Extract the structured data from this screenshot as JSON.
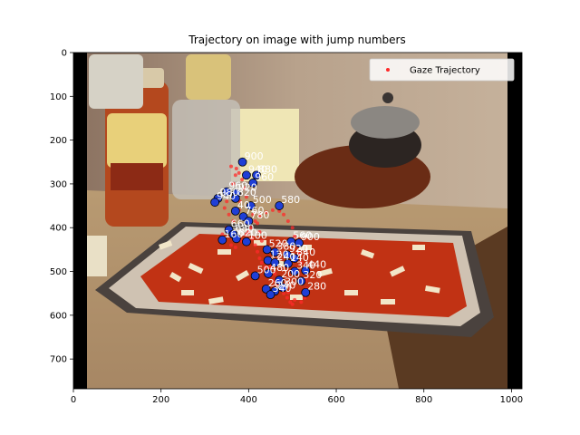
{
  "chart_data": {
    "type": "scatter",
    "title": "Trajectory on image with jump numbers",
    "xlabel": "",
    "ylabel": "",
    "xlim": [
      0,
      1024
    ],
    "ylim": [
      768,
      0
    ],
    "x_ticks": [
      0,
      200,
      400,
      600,
      800,
      1000
    ],
    "y_ticks": [
      0,
      100,
      200,
      300,
      400,
      500,
      600,
      700
    ],
    "legend": {
      "entries": [
        "Gaze Trajectory"
      ],
      "position": "top-right"
    },
    "background_image": "photo of a pizza with tomato sauce and cheese on a baking sheet, jar of pasta sauce behind, kitchen counter",
    "colors": {
      "trajectory": "#ff2a2a",
      "jump_point": "#1f3fd6",
      "jump_label": "#ffffff"
    },
    "trajectory_points": [
      [
        360,
        260
      ],
      [
        370,
        280
      ],
      [
        365,
        300
      ],
      [
        372,
        320
      ],
      [
        380,
        340
      ],
      [
        378,
        360
      ],
      [
        385,
        375
      ],
      [
        395,
        390
      ],
      [
        400,
        410
      ],
      [
        408,
        425
      ],
      [
        415,
        440
      ],
      [
        420,
        455
      ],
      [
        425,
        470
      ],
      [
        430,
        480
      ],
      [
        438,
        490
      ],
      [
        445,
        500
      ],
      [
        452,
        510
      ],
      [
        460,
        520
      ],
      [
        466,
        530
      ],
      [
        472,
        540
      ],
      [
        480,
        550
      ],
      [
        488,
        560
      ],
      [
        495,
        570
      ],
      [
        500,
        575
      ],
      [
        490,
        548
      ],
      [
        470,
        520
      ],
      [
        460,
        505
      ],
      [
        450,
        490
      ],
      [
        445,
        470
      ],
      [
        440,
        450
      ],
      [
        430,
        430
      ],
      [
        425,
        410
      ],
      [
        420,
        390
      ],
      [
        410,
        370
      ],
      [
        400,
        350
      ],
      [
        395,
        330
      ],
      [
        390,
        310
      ],
      [
        385,
        290
      ],
      [
        378,
        275
      ],
      [
        372,
        265
      ],
      [
        350,
        340
      ],
      [
        345,
        355
      ],
      [
        355,
        370
      ],
      [
        365,
        385
      ],
      [
        350,
        400
      ],
      [
        340,
        415
      ],
      [
        345,
        430
      ],
      [
        360,
        440
      ],
      [
        370,
        445
      ],
      [
        385,
        430
      ],
      [
        395,
        415
      ],
      [
        405,
        400
      ],
      [
        415,
        385
      ],
      [
        425,
        372
      ],
      [
        440,
        365
      ],
      [
        455,
        360
      ],
      [
        470,
        362
      ],
      [
        480,
        370
      ],
      [
        490,
        385
      ],
      [
        500,
        400
      ],
      [
        505,
        420
      ],
      [
        510,
        440
      ],
      [
        515,
        460
      ],
      [
        520,
        480
      ],
      [
        525,
        500
      ],
      [
        530,
        520
      ],
      [
        532,
        540
      ],
      [
        528,
        560
      ],
      [
        520,
        570
      ],
      [
        505,
        565
      ]
    ],
    "jumps": [
      {
        "label": "900",
        "x": 386,
        "y": 250
      },
      {
        "label": "940",
        "x": 395,
        "y": 280
      },
      {
        "label": "880",
        "x": 418,
        "y": 280
      },
      {
        "label": "960",
        "x": 410,
        "y": 298
      },
      {
        "label": "960",
        "x": 350,
        "y": 318
      },
      {
        "label": "920",
        "x": 372,
        "y": 322
      },
      {
        "label": "980",
        "x": 330,
        "y": 333
      },
      {
        "label": "820",
        "x": 370,
        "y": 333
      },
      {
        "label": "940",
        "x": 323,
        "y": 342
      },
      {
        "label": "500",
        "x": 405,
        "y": 350
      },
      {
        "label": "580",
        "x": 470,
        "y": 350
      },
      {
        "label": "40",
        "x": 370,
        "y": 362
      },
      {
        "label": "760",
        "x": 388,
        "y": 375
      },
      {
        "label": "780",
        "x": 400,
        "y": 385
      },
      {
        "label": "660",
        "x": 355,
        "y": 405
      },
      {
        "label": "680",
        "x": 365,
        "y": 415
      },
      {
        "label": "620",
        "x": 372,
        "y": 425
      },
      {
        "label": "100",
        "x": 395,
        "y": 432
      },
      {
        "label": "160",
        "x": 340,
        "y": 428
      },
      {
        "label": "560",
        "x": 497,
        "y": 432
      },
      {
        "label": "900",
        "x": 515,
        "y": 435
      },
      {
        "label": "520",
        "x": 442,
        "y": 450
      },
      {
        "label": "380",
        "x": 460,
        "y": 456
      },
      {
        "label": "920",
        "x": 488,
        "y": 462
      },
      {
        "label": "840",
        "x": 505,
        "y": 470
      },
      {
        "label": "120",
        "x": 444,
        "y": 475
      },
      {
        "label": "240",
        "x": 460,
        "y": 480
      },
      {
        "label": "140",
        "x": 490,
        "y": 482
      },
      {
        "label": "500",
        "x": 415,
        "y": 510
      },
      {
        "label": "480",
        "x": 445,
        "y": 505
      },
      {
        "label": "340",
        "x": 505,
        "y": 500
      },
      {
        "label": "440",
        "x": 530,
        "y": 498
      },
      {
        "label": "200",
        "x": 470,
        "y": 520
      },
      {
        "label": "320",
        "x": 520,
        "y": 522
      },
      {
        "label": "260",
        "x": 440,
        "y": 540
      },
      {
        "label": "300",
        "x": 478,
        "y": 537
      },
      {
        "label": "240",
        "x": 460,
        "y": 545
      },
      {
        "label": "340",
        "x": 450,
        "y": 553
      },
      {
        "label": "280",
        "x": 530,
        "y": 548
      }
    ]
  }
}
